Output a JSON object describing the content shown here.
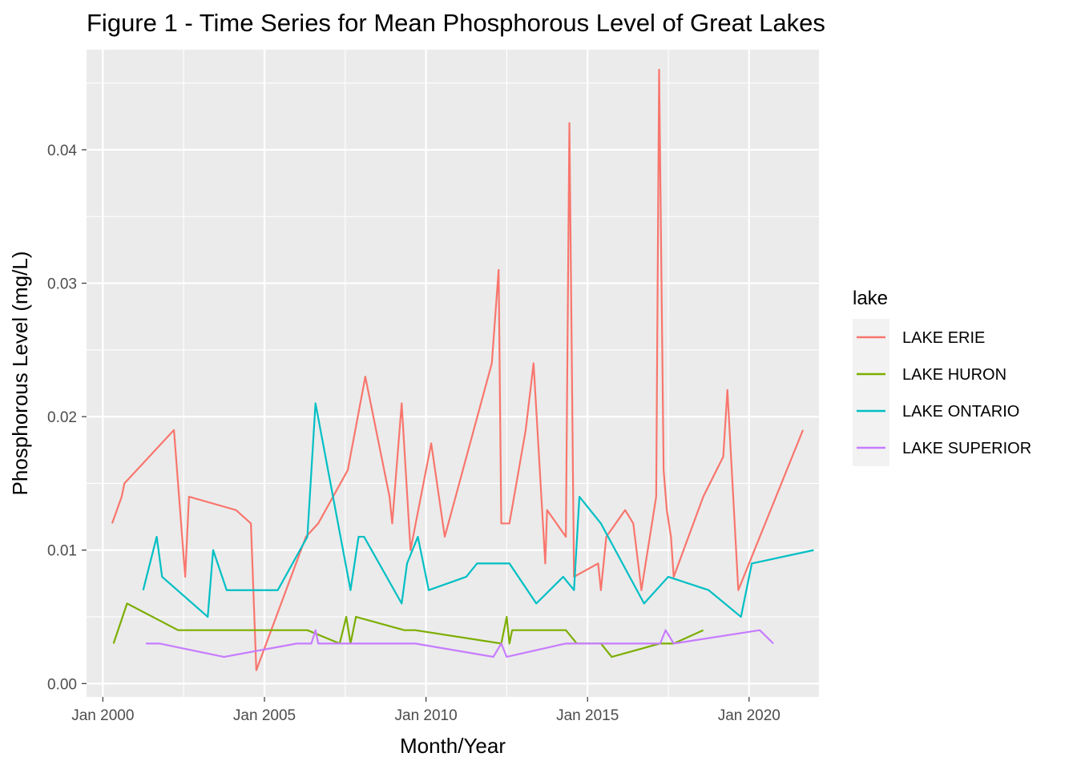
{
  "chart_data": {
    "type": "line",
    "title": "Figure 1 - Time Series for Mean Phosphorous Level of Great Lakes",
    "xlabel": "Month/Year",
    "ylabel": "Phosphorous Level (mg/L)",
    "x_type": "date",
    "xlim": [
      "1999-07-01",
      "2022-03-01"
    ],
    "ylim": [
      -0.001,
      0.0475
    ],
    "x_ticks": [
      {
        "date": "2000-01-01",
        "label": "Jan 2000"
      },
      {
        "date": "2005-01-01",
        "label": "Jan 2005"
      },
      {
        "date": "2010-01-01",
        "label": "Jan 2010"
      },
      {
        "date": "2015-01-01",
        "label": "Jan 2015"
      },
      {
        "date": "2020-01-01",
        "label": "Jan 2020"
      }
    ],
    "y_ticks": [
      {
        "value": 0.0,
        "label": "0.00"
      },
      {
        "value": 0.01,
        "label": "0.01"
      },
      {
        "value": 0.02,
        "label": "0.02"
      },
      {
        "value": 0.03,
        "label": "0.03"
      },
      {
        "value": 0.04,
        "label": "0.04"
      }
    ],
    "grid": true,
    "legend": {
      "title": "lake",
      "position": "right"
    },
    "series": [
      {
        "name": "LAKE ERIE",
        "color": "#F8766D",
        "points": [
          [
            "2000-04-15",
            0.012
          ],
          [
            "2000-08-01",
            0.014
          ],
          [
            "2000-09-01",
            0.015
          ],
          [
            "2002-03-15",
            0.019
          ],
          [
            "2002-07-20",
            0.008
          ],
          [
            "2002-09-01",
            0.014
          ],
          [
            "2004-02-15",
            0.013
          ],
          [
            "2004-08-01",
            0.012
          ],
          [
            "2004-10-01",
            0.001
          ],
          [
            "2006-04-15",
            0.011
          ],
          [
            "2006-09-01",
            0.012
          ],
          [
            "2007-08-01",
            0.016
          ],
          [
            "2008-02-15",
            0.023
          ],
          [
            "2008-11-15",
            0.014
          ],
          [
            "2008-12-15",
            0.012
          ],
          [
            "2009-04-01",
            0.021
          ],
          [
            "2009-07-10",
            0.01
          ],
          [
            "2010-03-01",
            0.018
          ],
          [
            "2010-08-01",
            0.011
          ],
          [
            "2012-01-15",
            0.024
          ],
          [
            "2012-04-01",
            0.031
          ],
          [
            "2012-05-01",
            0.012
          ],
          [
            "2012-08-01",
            0.012
          ],
          [
            "2013-02-01",
            0.019
          ],
          [
            "2013-05-01",
            0.024
          ],
          [
            "2013-09-10",
            0.009
          ],
          [
            "2013-10-01",
            0.013
          ],
          [
            "2014-05-01",
            0.011
          ],
          [
            "2014-06-10",
            0.042
          ],
          [
            "2014-08-01",
            0.008
          ],
          [
            "2015-05-01",
            0.009
          ],
          [
            "2015-06-01",
            0.007
          ],
          [
            "2015-08-01",
            0.011
          ],
          [
            "2016-03-01",
            0.013
          ],
          [
            "2016-06-01",
            0.012
          ],
          [
            "2016-09-01",
            0.007
          ],
          [
            "2017-02-15",
            0.014
          ],
          [
            "2017-03-20",
            0.046
          ],
          [
            "2017-05-10",
            0.016
          ],
          [
            "2017-06-15",
            0.013
          ],
          [
            "2017-08-01",
            0.011
          ],
          [
            "2017-09-01",
            0.008
          ],
          [
            "2018-08-01",
            0.014
          ],
          [
            "2019-03-15",
            0.017
          ],
          [
            "2019-05-01",
            0.022
          ],
          [
            "2019-09-01",
            0.007
          ],
          [
            "2021-09-01",
            0.019
          ]
        ]
      },
      {
        "name": "LAKE HURON",
        "color": "#7CAE00",
        "points": [
          [
            "2000-05-01",
            0.003
          ],
          [
            "2000-10-01",
            0.006
          ],
          [
            "2002-05-01",
            0.004
          ],
          [
            "2006-05-01",
            0.004
          ],
          [
            "2007-05-01",
            0.003
          ],
          [
            "2007-07-15",
            0.005
          ],
          [
            "2007-09-01",
            0.003
          ],
          [
            "2007-11-01",
            0.005
          ],
          [
            "2009-05-01",
            0.004
          ],
          [
            "2009-09-01",
            0.004
          ],
          [
            "2012-05-01",
            0.003
          ],
          [
            "2012-07-01",
            0.005
          ],
          [
            "2012-08-01",
            0.003
          ],
          [
            "2012-09-01",
            0.004
          ],
          [
            "2014-05-01",
            0.004
          ],
          [
            "2014-09-01",
            0.003
          ],
          [
            "2015-06-01",
            0.003
          ],
          [
            "2015-10-01",
            0.002
          ],
          [
            "2017-04-01",
            0.003
          ],
          [
            "2017-09-01",
            0.003
          ],
          [
            "2018-08-01",
            0.004
          ]
        ]
      },
      {
        "name": "LAKE ONTARIO",
        "color": "#00BFC4",
        "points": [
          [
            "2001-04-01",
            0.007
          ],
          [
            "2001-09-01",
            0.011
          ],
          [
            "2001-11-01",
            0.008
          ],
          [
            "2003-04-01",
            0.005
          ],
          [
            "2003-06-01",
            0.01
          ],
          [
            "2003-11-01",
            0.007
          ],
          [
            "2005-06-01",
            0.007
          ],
          [
            "2006-05-01",
            0.011
          ],
          [
            "2006-08-01",
            0.021
          ],
          [
            "2007-09-01",
            0.007
          ],
          [
            "2007-12-01",
            0.011
          ],
          [
            "2008-02-01",
            0.011
          ],
          [
            "2009-04-01",
            0.006
          ],
          [
            "2009-06-01",
            0.009
          ],
          [
            "2009-10-01",
            0.011
          ],
          [
            "2010-02-01",
            0.007
          ],
          [
            "2011-04-01",
            0.008
          ],
          [
            "2011-08-01",
            0.009
          ],
          [
            "2012-08-01",
            0.009
          ],
          [
            "2013-06-01",
            0.006
          ],
          [
            "2014-04-01",
            0.008
          ],
          [
            "2014-08-01",
            0.007
          ],
          [
            "2014-10-01",
            0.014
          ],
          [
            "2015-06-01",
            0.012
          ],
          [
            "2016-10-01",
            0.006
          ],
          [
            "2017-07-01",
            0.008
          ],
          [
            "2018-10-01",
            0.007
          ],
          [
            "2019-10-01",
            0.005
          ],
          [
            "2020-02-01",
            0.009
          ],
          [
            "2022-01-01",
            0.01
          ]
        ]
      },
      {
        "name": "LAKE SUPERIOR",
        "color": "#C77CFF",
        "points": [
          [
            "2001-05-01",
            0.003
          ],
          [
            "2001-10-01",
            0.003
          ],
          [
            "2003-10-01",
            0.002
          ],
          [
            "2006-01-01",
            0.003
          ],
          [
            "2006-06-15",
            0.003
          ],
          [
            "2006-08-01",
            0.004
          ],
          [
            "2006-09-01",
            0.003
          ],
          [
            "2009-09-01",
            0.003
          ],
          [
            "2012-02-01",
            0.002
          ],
          [
            "2012-05-01",
            0.003
          ],
          [
            "2012-07-01",
            0.002
          ],
          [
            "2014-05-01",
            0.003
          ],
          [
            "2017-04-01",
            0.003
          ],
          [
            "2017-06-01",
            0.004
          ],
          [
            "2017-09-01",
            0.003
          ],
          [
            "2020-05-01",
            0.004
          ],
          [
            "2020-10-01",
            0.003
          ]
        ]
      }
    ]
  }
}
